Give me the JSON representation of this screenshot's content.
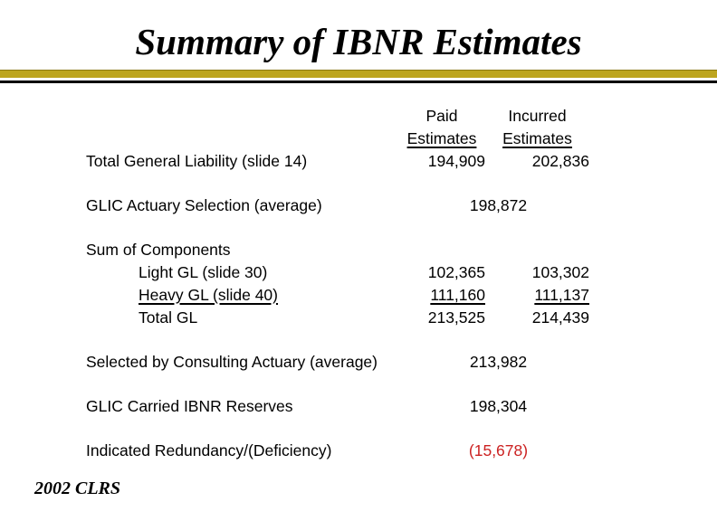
{
  "slide": {
    "title": "Summary of IBNR Estimates",
    "footer": "2002 CLRS"
  },
  "colors": {
    "accent_gold": "#BDA51E",
    "accent_gold_dark": "#8C7A12",
    "negative_red": "#CC2222",
    "text": "#000000"
  },
  "table": {
    "header": {
      "paid_line1": "Paid",
      "paid_line2": "Estimates",
      "incurred_line1": "Incurred",
      "incurred_line2": "Estimates"
    },
    "rows": [
      {
        "label": "Total General Liability (slide 14)",
        "paid": "194,909",
        "incurred": "202,836"
      },
      {
        "label": "GLIC Actuary Selection (average)",
        "center": "198,872"
      },
      {
        "label": "Sum of Components"
      },
      {
        "label": "Light GL (slide 30)",
        "paid": "102,365",
        "incurred": "103,302",
        "indent": true
      },
      {
        "label": "Heavy GL (slide 40)",
        "paid": "111,160",
        "incurred": "111,137",
        "indent": true,
        "underline": true
      },
      {
        "label": "Total GL",
        "paid": "213,525",
        "incurred": "214,439",
        "indent": true
      },
      {
        "label": "Selected by Consulting Actuary (average)",
        "center": "213,982"
      },
      {
        "label": "GLIC Carried IBNR Reserves",
        "center": "198,304"
      },
      {
        "label": "Indicated Redundancy/(Deficiency)",
        "center": "(15,678)",
        "negative": true
      }
    ]
  }
}
